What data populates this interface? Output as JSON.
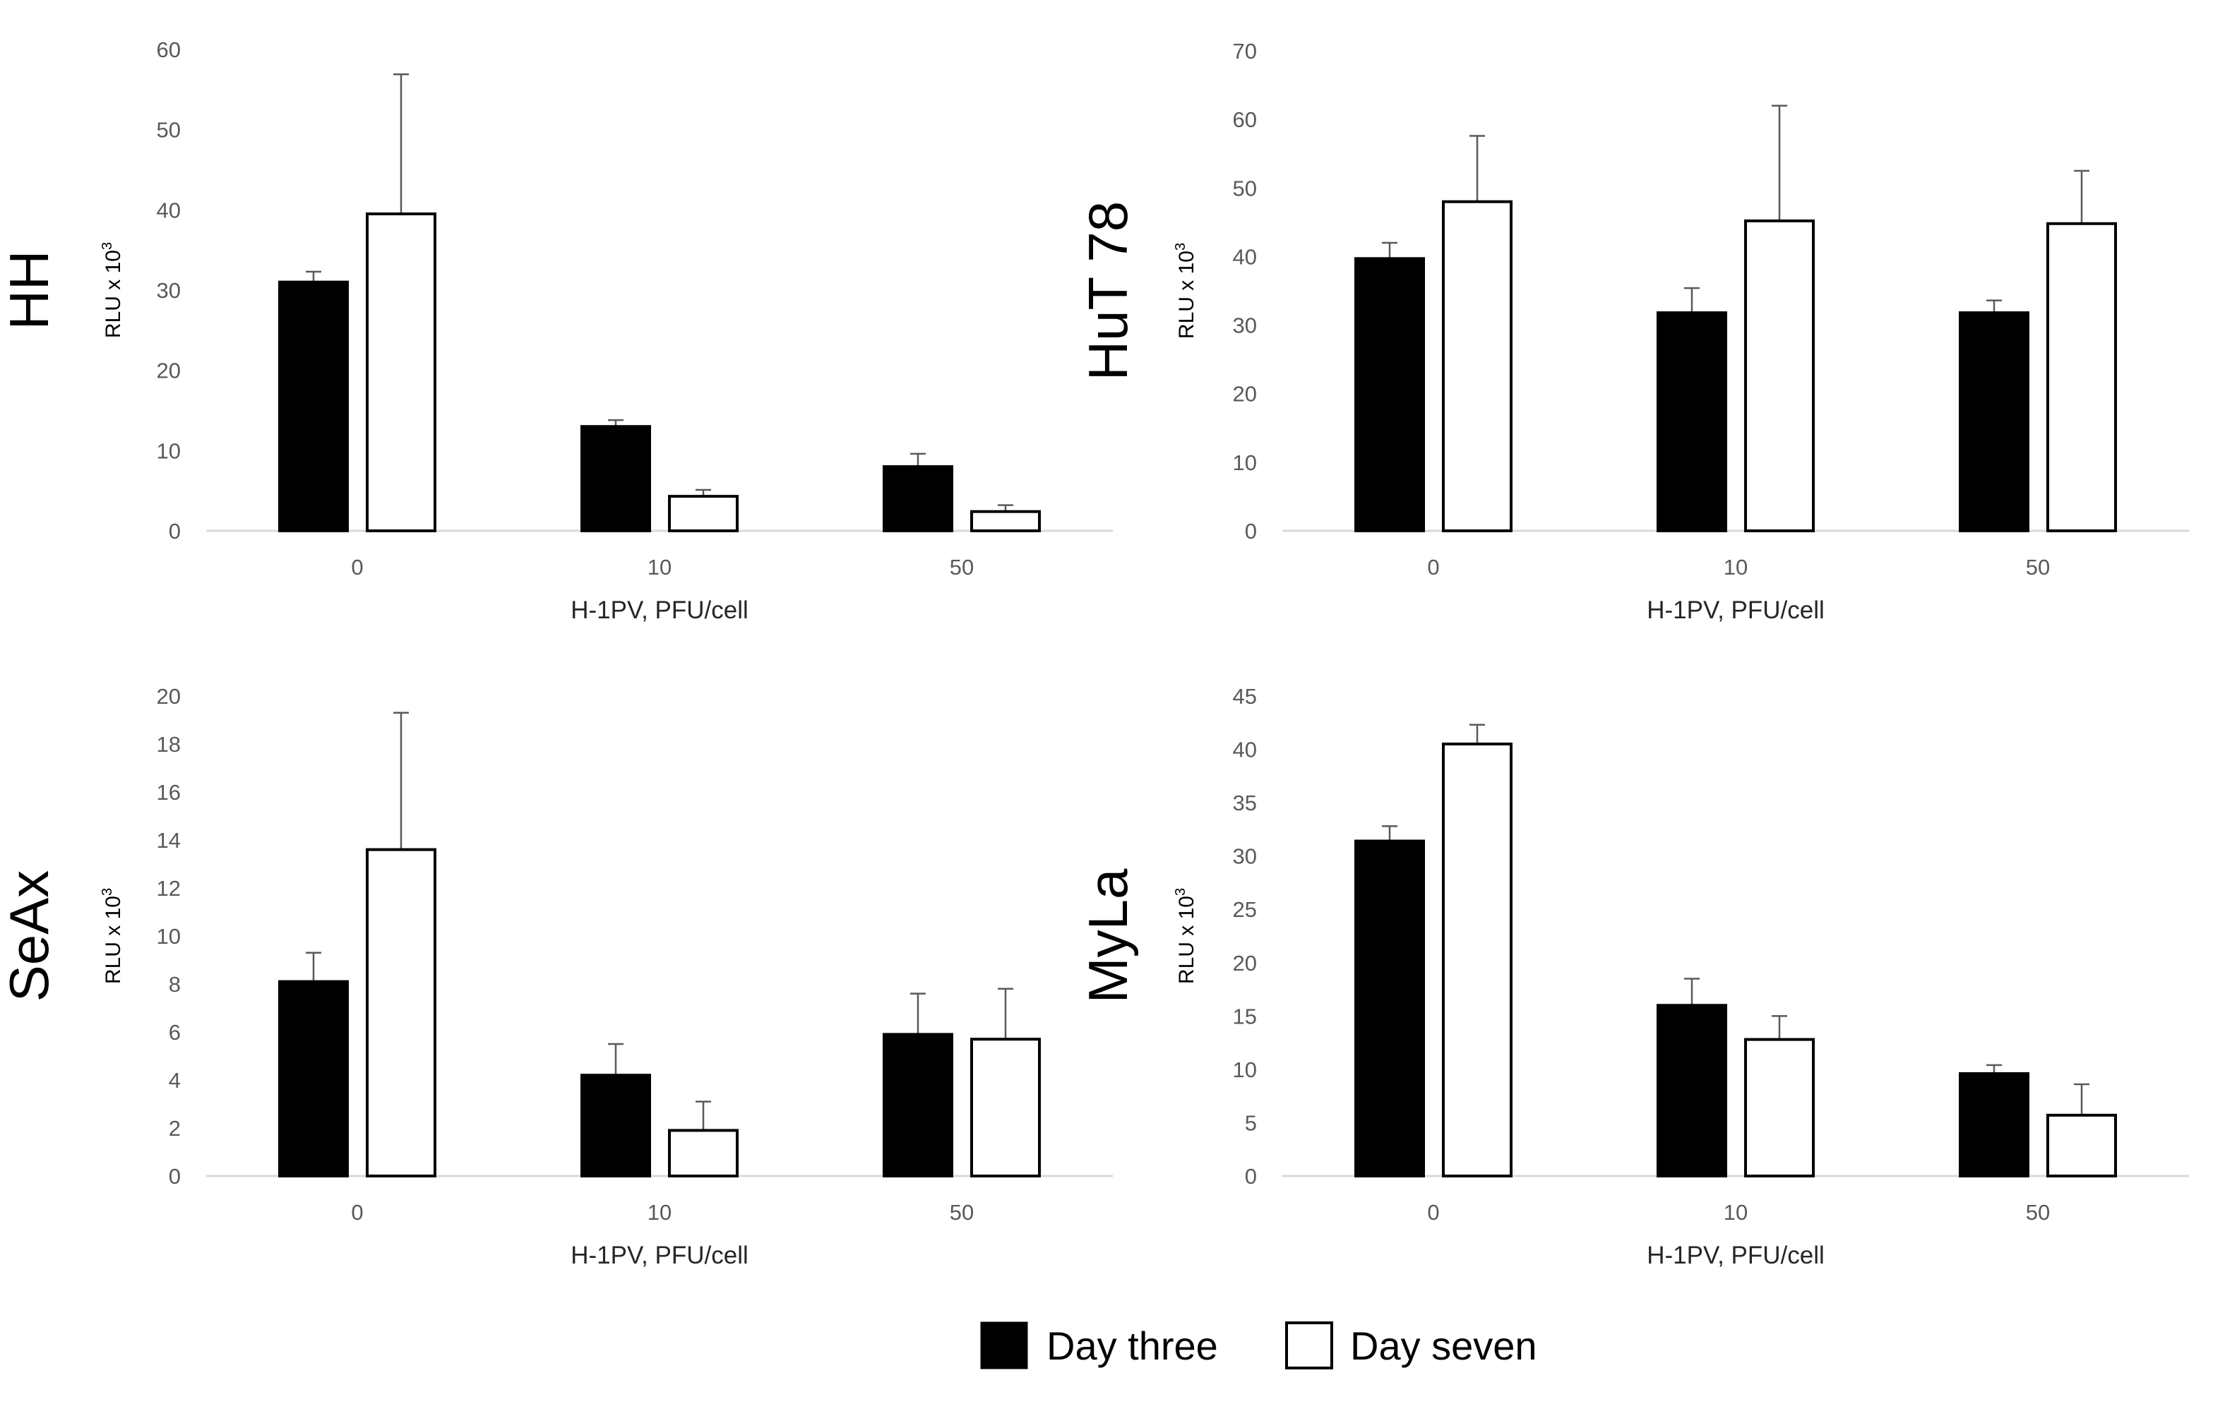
{
  "legend": {
    "series": [
      "Day three",
      "Day seven"
    ],
    "colors": [
      "#000000",
      "#ffffff"
    ]
  },
  "chart_data": [
    {
      "type": "bar",
      "panel_label": "HH",
      "ylabel": "RLU x 10",
      "ylabel_sup": "3",
      "xlabel": "H-1PV, PFU/cell",
      "categories": [
        "0",
        "10",
        "50"
      ],
      "ylim": [
        0,
        60
      ],
      "yticks": [
        0,
        10,
        20,
        30,
        40,
        50,
        60
      ],
      "series": [
        {
          "name": "Day three",
          "values": [
            31,
            13,
            8
          ],
          "errors": [
            1.3,
            0.8,
            1.6
          ]
        },
        {
          "name": "Day seven",
          "values": [
            39.5,
            4.3,
            2.4
          ],
          "errors": [
            17.4,
            0.8,
            0.8
          ]
        }
      ]
    },
    {
      "type": "bar",
      "panel_label": "HuT 78",
      "ylabel": "RLU x 10",
      "ylabel_sup": "3",
      "xlabel": "H-1PV, PFU/cell",
      "categories": [
        "0",
        "10",
        "50"
      ],
      "ylim": [
        0,
        70
      ],
      "yticks": [
        0,
        10,
        20,
        30,
        40,
        50,
        60,
        70
      ],
      "series": [
        {
          "name": "Day three",
          "values": [
            39.7,
            31.8,
            31.8
          ],
          "errors": [
            2.3,
            3.6,
            1.8
          ]
        },
        {
          "name": "Day seven",
          "values": [
            48,
            45.2,
            44.8
          ],
          "errors": [
            9.6,
            16.8,
            7.7
          ]
        }
      ]
    },
    {
      "type": "bar",
      "panel_label": "SeAx",
      "ylabel": "RLU x 10",
      "ylabel_sup": "3",
      "xlabel": "H-1PV, PFU/cell",
      "categories": [
        "0",
        "10",
        "50"
      ],
      "ylim": [
        0,
        20
      ],
      "yticks": [
        0,
        2,
        4,
        6,
        8,
        10,
        12,
        14,
        16,
        18,
        20
      ],
      "series": [
        {
          "name": "Day three",
          "values": [
            8.1,
            4.2,
            5.9
          ],
          "errors": [
            1.2,
            1.3,
            1.7
          ]
        },
        {
          "name": "Day seven",
          "values": [
            13.6,
            1.9,
            5.7
          ],
          "errors": [
            5.7,
            1.2,
            2.1
          ]
        }
      ]
    },
    {
      "type": "bar",
      "panel_label": "MyLa",
      "ylabel": "RLU x 10",
      "ylabel_sup": "3",
      "xlabel": "H-1PV, PFU/cell",
      "categories": [
        "0",
        "10",
        "50"
      ],
      "ylim": [
        0,
        45
      ],
      "yticks": [
        0,
        5,
        10,
        15,
        20,
        25,
        30,
        35,
        40,
        45
      ],
      "series": [
        {
          "name": "Day three",
          "values": [
            31.4,
            16,
            9.6
          ],
          "errors": [
            1.4,
            2.5,
            0.8
          ]
        },
        {
          "name": "Day seven",
          "values": [
            40.5,
            12.8,
            5.7
          ],
          "errors": [
            1.8,
            2.2,
            2.9
          ]
        }
      ]
    }
  ]
}
